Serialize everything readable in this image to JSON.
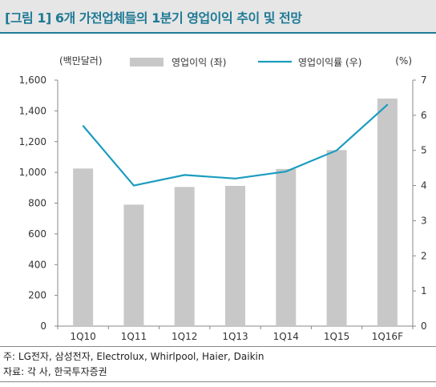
{
  "title": "[그림 1] 6개 가전업체들의 1분기 영업이익 추이 및 전망",
  "notes": {
    "note_line": "주:   LG전자, 삼성전자, Electrolux, Whirlpool, Haier, Daikin",
    "source_line": "자료: 각 사, 한국투자증권"
  },
  "colors": {
    "title": "#1f7a95",
    "title_bg": "#e6e6e6",
    "bar": "#c8c8c8",
    "line": "#1b9cbf"
  },
  "chart_data": {
    "type": "bar",
    "categories": [
      "1Q10",
      "1Q11",
      "1Q12",
      "1Q13",
      "1Q14",
      "1Q15",
      "1Q16F"
    ],
    "series": [
      {
        "name": "영업이익 (좌)",
        "type": "bar",
        "axis": "left",
        "values": [
          1025,
          790,
          905,
          912,
          1022,
          1145,
          1480
        ]
      },
      {
        "name": "영업이익률 (우)",
        "type": "line",
        "axis": "right",
        "values": [
          5.7,
          4.0,
          4.3,
          4.2,
          4.4,
          5.0,
          6.3
        ]
      }
    ],
    "y_left": {
      "unit_label": "(백만달러)",
      "ylim": [
        0,
        1600
      ],
      "ticks": [
        "0",
        "200",
        "400",
        "600",
        "800",
        "1,000",
        "1,200",
        "1,400",
        "1,600"
      ],
      "tick_values": [
        0,
        200,
        400,
        600,
        800,
        1000,
        1200,
        1400,
        1600
      ]
    },
    "y_right": {
      "unit_label": "(%)",
      "ylim": [
        0,
        7
      ],
      "ticks": [
        "0",
        "1",
        "2",
        "3",
        "4",
        "5",
        "6",
        "7"
      ],
      "tick_values": [
        0,
        1,
        2,
        3,
        4,
        5,
        6,
        7
      ]
    },
    "grid": false,
    "legend_position": "top"
  }
}
